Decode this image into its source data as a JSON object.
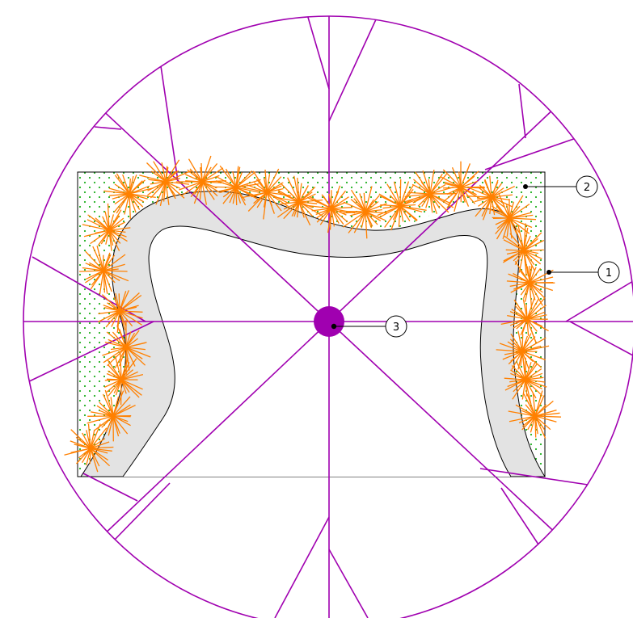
{
  "colors": {
    "spokes": "#a000b0",
    "hub": "#a000b0",
    "bristles": "#ff8000",
    "band_fill": "#e3e3e3",
    "dots": "#20b020",
    "outline": "#000000",
    "background": "#ffffff"
  },
  "callouts": [
    {
      "label": "1"
    },
    {
      "label": "2"
    },
    {
      "label": "3"
    }
  ]
}
